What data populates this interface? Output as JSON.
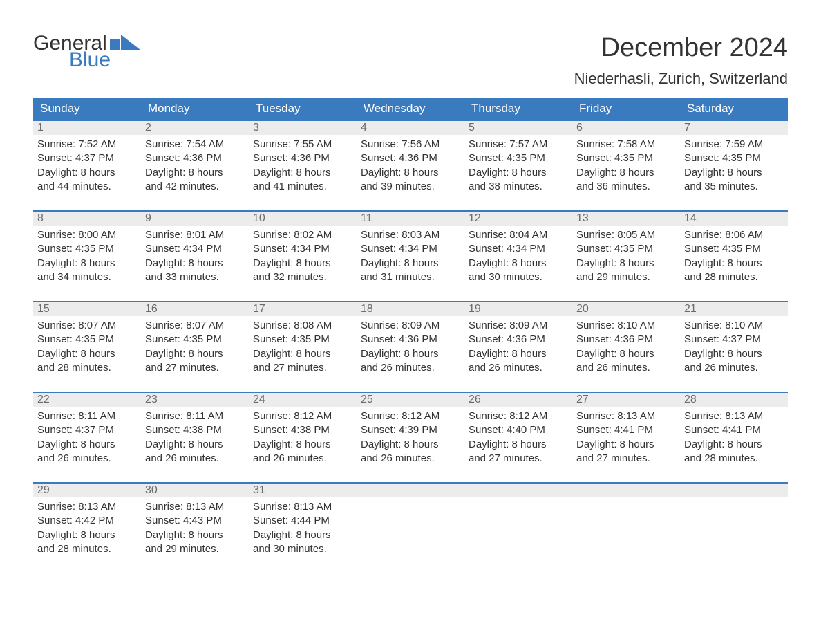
{
  "brand": {
    "general": "General",
    "blue": "Blue",
    "flag_color": "#3a7bbf"
  },
  "title": "December 2024",
  "location": "Niederhasli, Zurich, Switzerland",
  "colors": {
    "header_bg": "#3a7bbf",
    "header_text": "#ffffff",
    "daynum_bg": "#ececec",
    "daynum_text": "#6b6b6b",
    "body_text": "#333333",
    "rule": "#3a7bbf",
    "page_bg": "#ffffff"
  },
  "typography": {
    "title_fontsize": 38,
    "location_fontsize": 22,
    "dayheader_fontsize": 17,
    "daynum_fontsize": 16,
    "body_fontsize": 15,
    "font_family": "Arial"
  },
  "day_names": [
    "Sunday",
    "Monday",
    "Tuesday",
    "Wednesday",
    "Thursday",
    "Friday",
    "Saturday"
  ],
  "labels": {
    "sunrise": "Sunrise:",
    "sunset": "Sunset:",
    "daylight": "Daylight:"
  },
  "weeks": [
    [
      {
        "num": "1",
        "sunrise": "7:52 AM",
        "sunset": "4:37 PM",
        "daylight_l1": "8 hours",
        "daylight_l2": "and 44 minutes."
      },
      {
        "num": "2",
        "sunrise": "7:54 AM",
        "sunset": "4:36 PM",
        "daylight_l1": "8 hours",
        "daylight_l2": "and 42 minutes."
      },
      {
        "num": "3",
        "sunrise": "7:55 AM",
        "sunset": "4:36 PM",
        "daylight_l1": "8 hours",
        "daylight_l2": "and 41 minutes."
      },
      {
        "num": "4",
        "sunrise": "7:56 AM",
        "sunset": "4:36 PM",
        "daylight_l1": "8 hours",
        "daylight_l2": "and 39 minutes."
      },
      {
        "num": "5",
        "sunrise": "7:57 AM",
        "sunset": "4:35 PM",
        "daylight_l1": "8 hours",
        "daylight_l2": "and 38 minutes."
      },
      {
        "num": "6",
        "sunrise": "7:58 AM",
        "sunset": "4:35 PM",
        "daylight_l1": "8 hours",
        "daylight_l2": "and 36 minutes."
      },
      {
        "num": "7",
        "sunrise": "7:59 AM",
        "sunset": "4:35 PM",
        "daylight_l1": "8 hours",
        "daylight_l2": "and 35 minutes."
      }
    ],
    [
      {
        "num": "8",
        "sunrise": "8:00 AM",
        "sunset": "4:35 PM",
        "daylight_l1": "8 hours",
        "daylight_l2": "and 34 minutes."
      },
      {
        "num": "9",
        "sunrise": "8:01 AM",
        "sunset": "4:34 PM",
        "daylight_l1": "8 hours",
        "daylight_l2": "and 33 minutes."
      },
      {
        "num": "10",
        "sunrise": "8:02 AM",
        "sunset": "4:34 PM",
        "daylight_l1": "8 hours",
        "daylight_l2": "and 32 minutes."
      },
      {
        "num": "11",
        "sunrise": "8:03 AM",
        "sunset": "4:34 PM",
        "daylight_l1": "8 hours",
        "daylight_l2": "and 31 minutes."
      },
      {
        "num": "12",
        "sunrise": "8:04 AM",
        "sunset": "4:34 PM",
        "daylight_l1": "8 hours",
        "daylight_l2": "and 30 minutes."
      },
      {
        "num": "13",
        "sunrise": "8:05 AM",
        "sunset": "4:35 PM",
        "daylight_l1": "8 hours",
        "daylight_l2": "and 29 minutes."
      },
      {
        "num": "14",
        "sunrise": "8:06 AM",
        "sunset": "4:35 PM",
        "daylight_l1": "8 hours",
        "daylight_l2": "and 28 minutes."
      }
    ],
    [
      {
        "num": "15",
        "sunrise": "8:07 AM",
        "sunset": "4:35 PM",
        "daylight_l1": "8 hours",
        "daylight_l2": "and 28 minutes."
      },
      {
        "num": "16",
        "sunrise": "8:07 AM",
        "sunset": "4:35 PM",
        "daylight_l1": "8 hours",
        "daylight_l2": "and 27 minutes."
      },
      {
        "num": "17",
        "sunrise": "8:08 AM",
        "sunset": "4:35 PM",
        "daylight_l1": "8 hours",
        "daylight_l2": "and 27 minutes."
      },
      {
        "num": "18",
        "sunrise": "8:09 AM",
        "sunset": "4:36 PM",
        "daylight_l1": "8 hours",
        "daylight_l2": "and 26 minutes."
      },
      {
        "num": "19",
        "sunrise": "8:09 AM",
        "sunset": "4:36 PM",
        "daylight_l1": "8 hours",
        "daylight_l2": "and 26 minutes."
      },
      {
        "num": "20",
        "sunrise": "8:10 AM",
        "sunset": "4:36 PM",
        "daylight_l1": "8 hours",
        "daylight_l2": "and 26 minutes."
      },
      {
        "num": "21",
        "sunrise": "8:10 AM",
        "sunset": "4:37 PM",
        "daylight_l1": "8 hours",
        "daylight_l2": "and 26 minutes."
      }
    ],
    [
      {
        "num": "22",
        "sunrise": "8:11 AM",
        "sunset": "4:37 PM",
        "daylight_l1": "8 hours",
        "daylight_l2": "and 26 minutes."
      },
      {
        "num": "23",
        "sunrise": "8:11 AM",
        "sunset": "4:38 PM",
        "daylight_l1": "8 hours",
        "daylight_l2": "and 26 minutes."
      },
      {
        "num": "24",
        "sunrise": "8:12 AM",
        "sunset": "4:38 PM",
        "daylight_l1": "8 hours",
        "daylight_l2": "and 26 minutes."
      },
      {
        "num": "25",
        "sunrise": "8:12 AM",
        "sunset": "4:39 PM",
        "daylight_l1": "8 hours",
        "daylight_l2": "and 26 minutes."
      },
      {
        "num": "26",
        "sunrise": "8:12 AM",
        "sunset": "4:40 PM",
        "daylight_l1": "8 hours",
        "daylight_l2": "and 27 minutes."
      },
      {
        "num": "27",
        "sunrise": "8:13 AM",
        "sunset": "4:41 PM",
        "daylight_l1": "8 hours",
        "daylight_l2": "and 27 minutes."
      },
      {
        "num": "28",
        "sunrise": "8:13 AM",
        "sunset": "4:41 PM",
        "daylight_l1": "8 hours",
        "daylight_l2": "and 28 minutes."
      }
    ],
    [
      {
        "num": "29",
        "sunrise": "8:13 AM",
        "sunset": "4:42 PM",
        "daylight_l1": "8 hours",
        "daylight_l2": "and 28 minutes."
      },
      {
        "num": "30",
        "sunrise": "8:13 AM",
        "sunset": "4:43 PM",
        "daylight_l1": "8 hours",
        "daylight_l2": "and 29 minutes."
      },
      {
        "num": "31",
        "sunrise": "8:13 AM",
        "sunset": "4:44 PM",
        "daylight_l1": "8 hours",
        "daylight_l2": "and 30 minutes."
      },
      {
        "empty": true
      },
      {
        "empty": true
      },
      {
        "empty": true
      },
      {
        "empty": true
      }
    ]
  ]
}
